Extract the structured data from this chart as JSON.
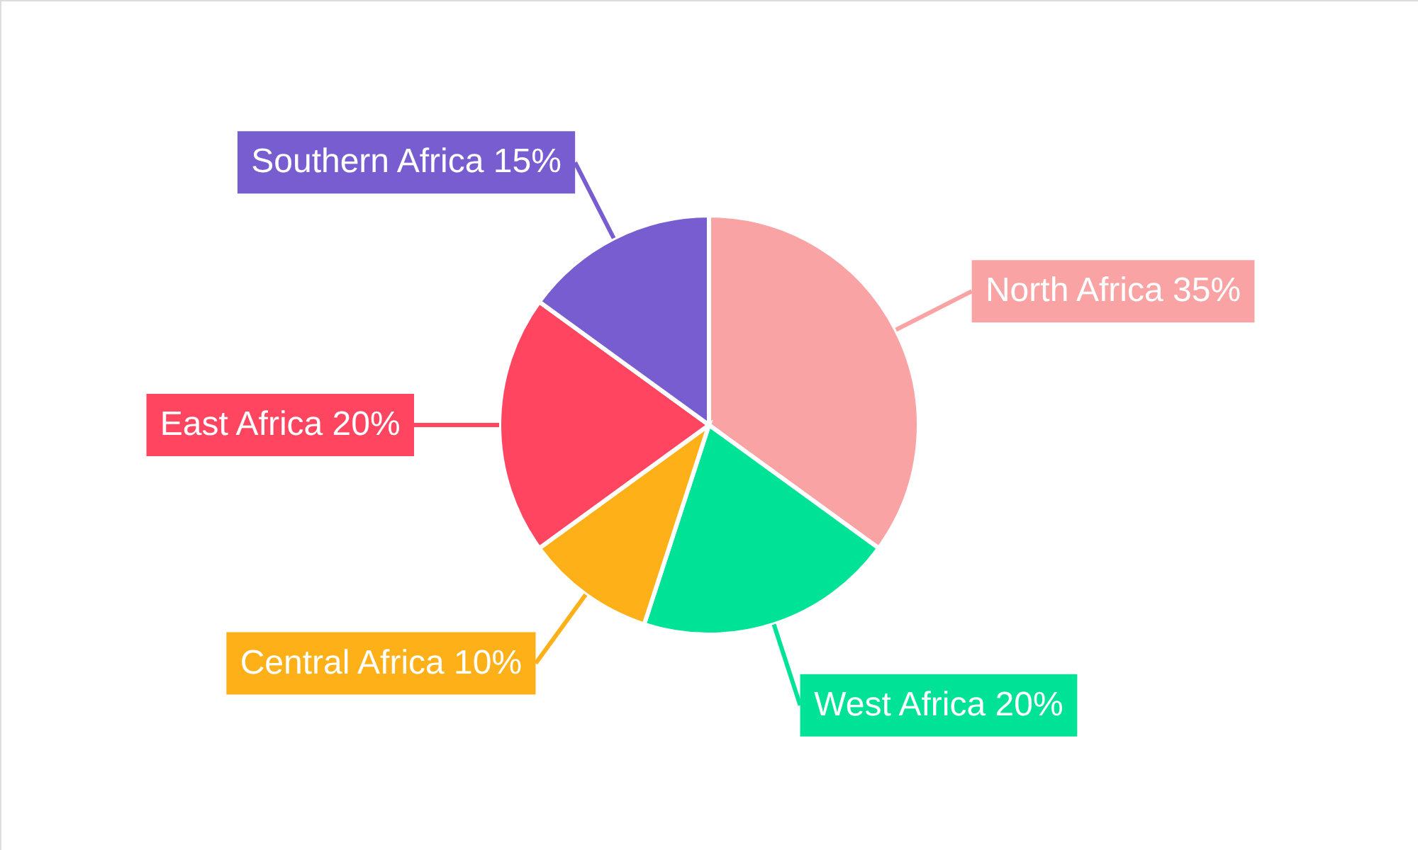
{
  "chart_data": {
    "type": "pie",
    "categories": [
      "North Africa",
      "West Africa",
      "Central Africa",
      "East Africa",
      "Southern Africa"
    ],
    "values": [
      35,
      20,
      10,
      20,
      15
    ],
    "colors": [
      "#f9a3a4",
      "#00e396",
      "#feb019",
      "#ff4560",
      "#775dd0"
    ],
    "value_labels": [
      "35%",
      "20%",
      "10%",
      "20%",
      "15%"
    ]
  }
}
